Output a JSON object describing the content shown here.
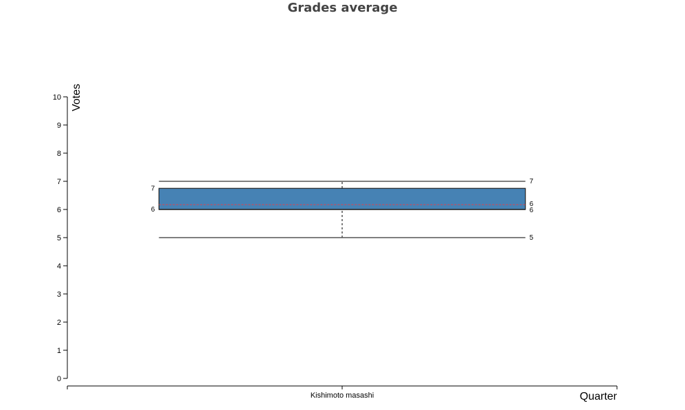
{
  "chart_data": {
    "type": "box",
    "title": "Grades average",
    "xlabel": "Quarter",
    "ylabel": "Votes",
    "ylim": [
      0,
      10
    ],
    "yticks": [
      "0",
      "1",
      "2",
      "3",
      "4",
      "5",
      "6",
      "7",
      "8",
      "9",
      "10"
    ],
    "categories": [
      "Kishimoto masashi"
    ],
    "boxes": [
      {
        "category": "Kishimoto masashi",
        "whisker_low": 5,
        "q1": 6,
        "median": 6,
        "mean": 6.17,
        "q3": 6.75,
        "whisker_high": 7,
        "labels": {
          "q3_left": "7",
          "q1_left": "6",
          "whisker_high_right": "7",
          "mean_right": "6",
          "q1_right": "6",
          "whisker_low_right": "5"
        }
      }
    ],
    "colors": {
      "box_fill": "#4682b4",
      "box_stroke": "#222222",
      "mean_line": "#e0434b",
      "axis": "#000000",
      "whisker": "#555555"
    }
  }
}
